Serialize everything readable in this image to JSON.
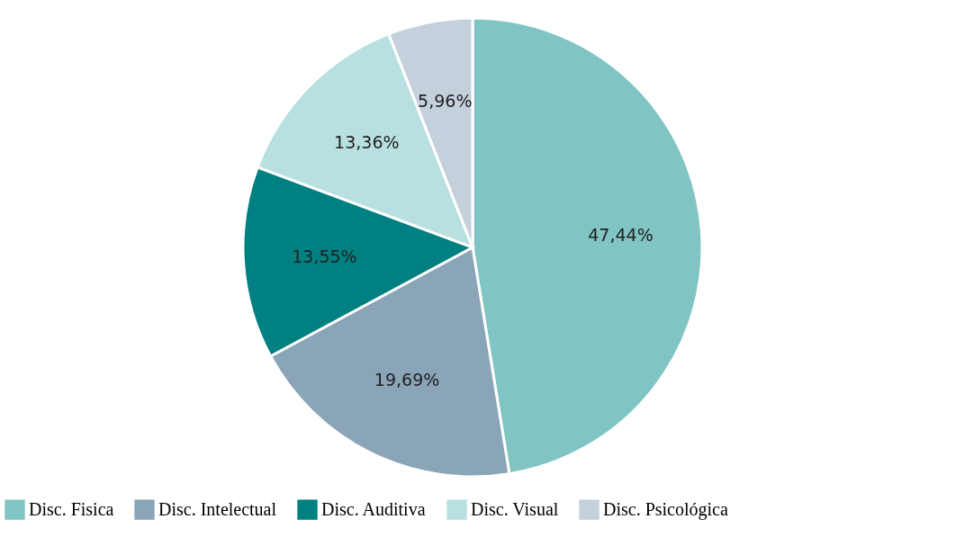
{
  "chart_data": {
    "type": "pie",
    "categories": [
      "Disc. Fisica",
      "Disc. Intelectual",
      "Disc. Auditiva",
      "Disc. Visual",
      "Disc. Psicológica"
    ],
    "values": [
      47.44,
      19.69,
      13.55,
      13.36,
      5.96
    ],
    "colors": [
      "#80c4c4",
      "#8aa4b8",
      "#008080",
      "#b8e0e0",
      "#c4d0dc"
    ],
    "value_labels": [
      "47,44%",
      "19,69%",
      "13,55%",
      "13,36%",
      "5,96%"
    ],
    "legend": "bottom"
  }
}
